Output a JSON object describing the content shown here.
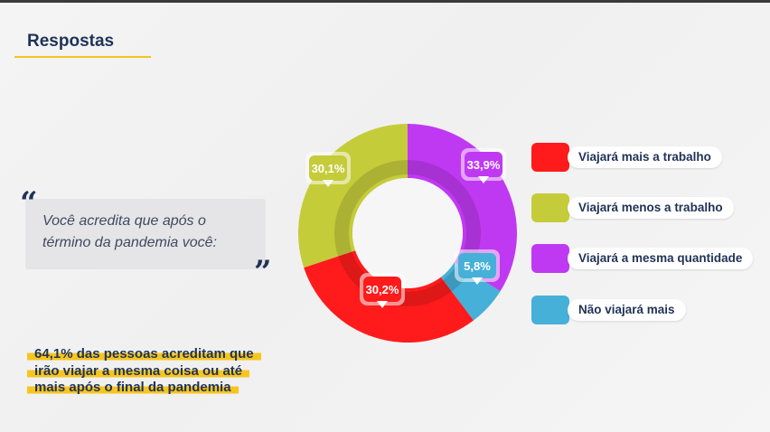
{
  "page_title": "Respostas",
  "question": {
    "line1": "Você acredita que após o",
    "line2": "término da pandemia você:"
  },
  "conclusion": {
    "line1": "64,1% das pessoas acreditam que",
    "line2": "irão viajar a mesma coisa ou até",
    "line3": "mais após o final da pandemia"
  },
  "colors": {
    "title": "#1f3357",
    "accent": "#f5c518"
  },
  "chart_data": {
    "type": "pie",
    "style": "donut",
    "start": "top",
    "direction": "clockwise",
    "slices": [
      {
        "key": "mesma",
        "label": "Viajará a mesma quantidade",
        "value": 33.9,
        "display": "33,9%",
        "color": "#c039f2"
      },
      {
        "key": "nao",
        "label": "Não viajará mais",
        "value": 5.8,
        "display": "5,8%",
        "color": "#46b0d8"
      },
      {
        "key": "mais",
        "label": "Viajará mais a trabalho",
        "value": 30.2,
        "display": "30,2%",
        "color": "#ff1b1b"
      },
      {
        "key": "menos",
        "label": "Viajará menos a trabalho",
        "value": 30.1,
        "display": "30,1%",
        "color": "#c5cc3a"
      }
    ],
    "legend": [
      {
        "label": "Viajará mais a trabalho",
        "color": "#ff1b1b"
      },
      {
        "label": "Viajará menos a trabalho",
        "color": "#c5cc3a"
      },
      {
        "label": "Viajará a mesma quantidade",
        "color": "#c039f2"
      },
      {
        "label": "Não viajará mais",
        "color": "#46b0d8"
      }
    ],
    "legend_position": "right"
  }
}
